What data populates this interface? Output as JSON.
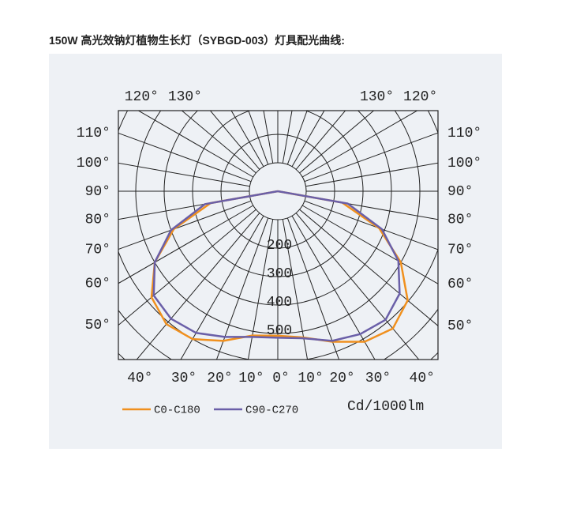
{
  "chart_data": {
    "type": "polar",
    "title": "150W 高光效钠灯植物生长灯（SYBGD-003）灯具配光曲线:",
    "unit": "Cd/1000lm",
    "angles": [
      -90,
      -80,
      -70,
      -60,
      -50,
      -40,
      -30,
      -20,
      -10,
      0,
      10,
      20,
      30,
      40,
      50,
      60,
      70,
      80,
      90
    ],
    "series": [
      {
        "name": "C0-C180",
        "color": "#f0901e",
        "values": [
          0,
          240,
          390,
          500,
          580,
          610,
          600,
          560,
          515,
          508,
          522,
          563,
          611,
          630,
          597,
          500,
          380,
          230,
          0
        ]
      },
      {
        "name": "C90-C270",
        "color": "#6a5fa8",
        "values": [
          0,
          260,
          400,
          500,
          570,
          585,
          575,
          545,
          520,
          515,
          525,
          560,
          580,
          590,
          560,
          490,
          390,
          250,
          0
        ]
      }
    ],
    "rlim": [
      0,
      600
    ],
    "rticks": [
      200,
      300,
      400,
      500
    ],
    "rgrid": [
      100,
      200,
      300,
      400,
      500,
      600,
      700,
      800
    ],
    "angle_ticks": [
      {
        "value": -130,
        "label": "130°"
      },
      {
        "value": -120,
        "label": "120°"
      },
      {
        "value": -110,
        "label": "110°"
      },
      {
        "value": -100,
        "label": "100°"
      },
      {
        "value": -90,
        "label": "90°"
      },
      {
        "value": -80,
        "label": "80°"
      },
      {
        "value": -70,
        "label": "70°"
      },
      {
        "value": -60,
        "label": "60°"
      },
      {
        "value": -50,
        "label": "50°"
      },
      {
        "value": -40,
        "label": "40°"
      },
      {
        "value": -30,
        "label": "30°"
      },
      {
        "value": -20,
        "label": "20°"
      },
      {
        "value": -10,
        "label": "10°"
      },
      {
        "value": 0,
        "label": "0°"
      },
      {
        "value": 10,
        "label": "10°"
      },
      {
        "value": 20,
        "label": "20°"
      },
      {
        "value": 30,
        "label": "30°"
      },
      {
        "value": 40,
        "label": "40°"
      },
      {
        "value": 50,
        "label": "50°"
      },
      {
        "value": 60,
        "label": "60°"
      },
      {
        "value": 70,
        "label": "70°"
      },
      {
        "value": 80,
        "label": "80°"
      },
      {
        "value": 90,
        "label": "90°"
      },
      {
        "value": 100,
        "label": "100°"
      },
      {
        "value": 110,
        "label": "110°"
      },
      {
        "value": 120,
        "label": "120°"
      },
      {
        "value": 130,
        "label": "130°"
      }
    ],
    "legend": "bottom-left"
  }
}
